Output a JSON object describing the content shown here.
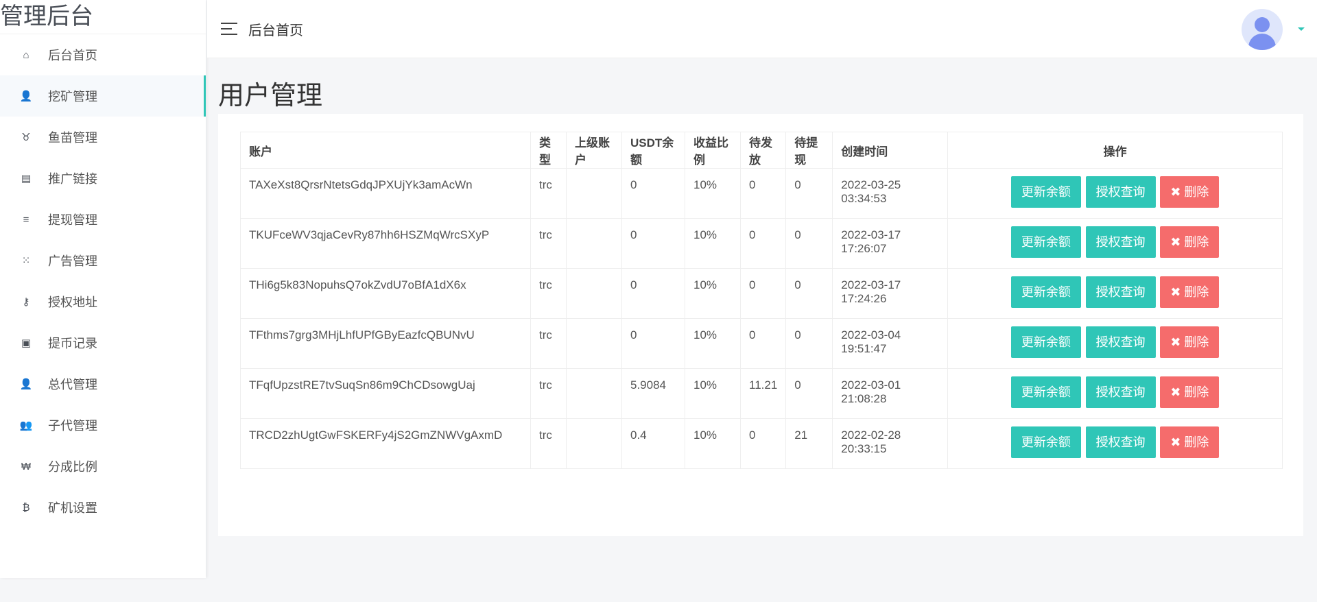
{
  "app": {
    "title": "管理后台"
  },
  "sidebar": {
    "items": [
      {
        "label": "后台首页",
        "icon": "⌂",
        "name": "home"
      },
      {
        "label": "挖矿管理",
        "icon": "👤",
        "name": "user",
        "active": true
      },
      {
        "label": "鱼苗管理",
        "icon": "♉",
        "name": "cow"
      },
      {
        "label": "推广链接",
        "icon": "▤",
        "name": "file"
      },
      {
        "label": "提现管理",
        "icon": "≡",
        "name": "list"
      },
      {
        "label": "广告管理",
        "icon": "⁙",
        "name": "dots"
      },
      {
        "label": "授权地址",
        "icon": "⚷",
        "name": "key"
      },
      {
        "label": "提币记录",
        "icon": "▣",
        "name": "record"
      },
      {
        "label": "总代管理",
        "icon": "👤",
        "name": "user"
      },
      {
        "label": "子代管理",
        "icon": "👥",
        "name": "users"
      },
      {
        "label": "分成比例",
        "icon": "₩",
        "name": "won"
      },
      {
        "label": "矿机设置",
        "icon": "₿",
        "name": "bitcoin"
      }
    ]
  },
  "header": {
    "breadcrumb": "后台首页"
  },
  "main": {
    "title": "用户管理",
    "columns": [
      "账户",
      "类型",
      "上级账户",
      "USDT余额",
      "收益比例",
      "待发放",
      "待提现",
      "创建时间",
      "操作"
    ],
    "actions": {
      "update": "更新余额",
      "query": "授权查询",
      "delete": "✖ 删除"
    },
    "rows": [
      [
        "TAXeXst8QrsrNtetsGdqJPXUjYk3amAcWn",
        "trc",
        "",
        "0",
        "10%",
        "0",
        "0",
        "2022-03-25 03:34:53"
      ],
      [
        "TKUFceWV3qjaCevRy87hh6HSZMqWrcSXyP",
        "trc",
        "",
        "0",
        "10%",
        "0",
        "0",
        "2022-03-17 17:26:07"
      ],
      [
        "THi6g5k83NopuhsQ7okZvdU7oBfA1dX6x",
        "trc",
        "",
        "0",
        "10%",
        "0",
        "0",
        "2022-03-17 17:24:26"
      ],
      [
        "TFthms7grg3MHjLhfUPfGByEazfcQBUNvU",
        "trc",
        "",
        "0",
        "10%",
        "0",
        "0",
        "2022-03-04 19:51:47"
      ],
      [
        "TFqfUpzstRE7tvSuqSn86m9ChCDsowgUaj",
        "trc",
        "",
        "5.9084",
        "10%",
        "11.21",
        "0",
        "2022-03-01 21:08:28"
      ],
      [
        "TRCD2zhUgtGwFSKERFy4jS2GmZNWVgAxmD",
        "trc",
        "",
        "0.4",
        "10%",
        "0",
        "21",
        "2022-02-28 20:33:15"
      ]
    ]
  },
  "colors": {
    "accent": "#2fc6b7",
    "danger": "#f56c6c"
  }
}
